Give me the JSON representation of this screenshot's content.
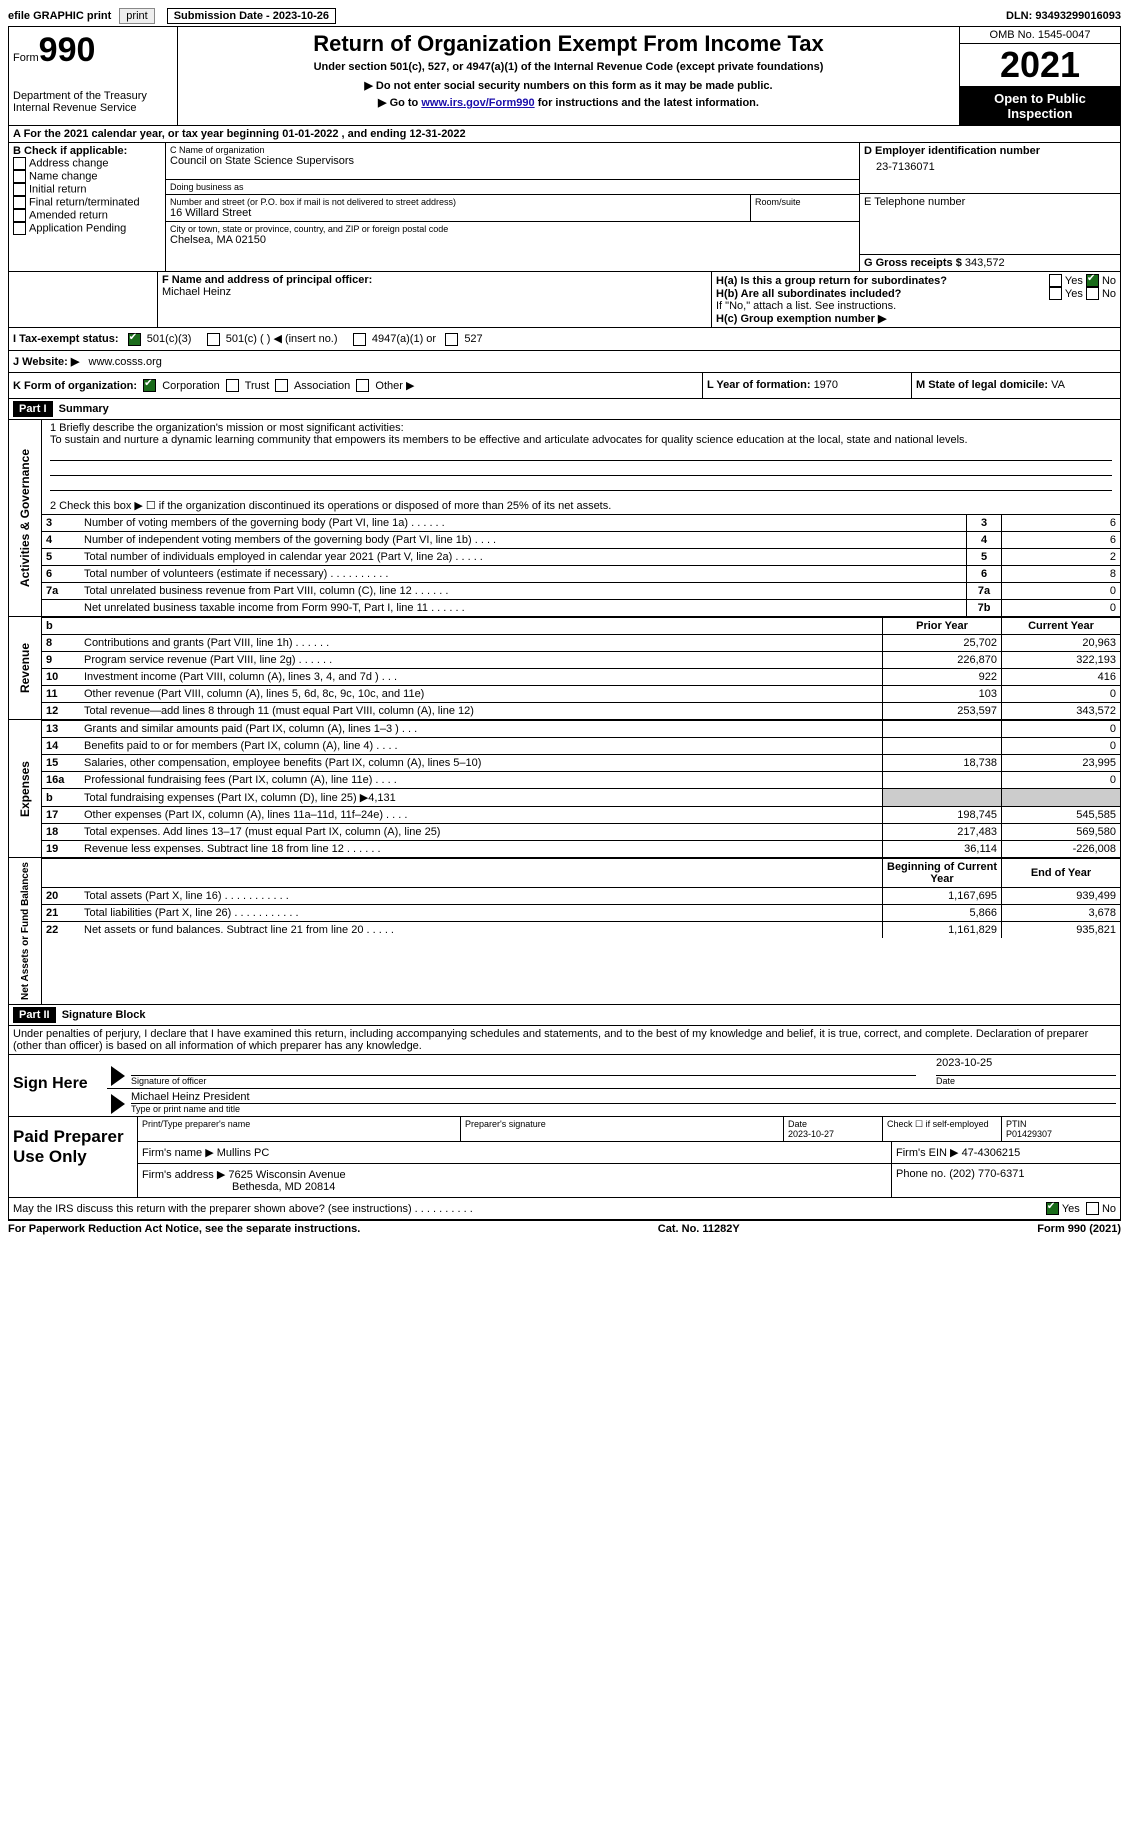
{
  "topbar": {
    "efile_label": "efile GRAPHIC print",
    "submission_label": "Submission Date - 2023-10-26",
    "dln_label": "DLN: 93493299016093"
  },
  "header": {
    "form_label": "Form",
    "form_number": "990",
    "dept": "Department of the Treasury",
    "irs": "Internal Revenue Service",
    "title": "Return of Organization Exempt From Income Tax",
    "subtitle": "Under section 501(c), 527, or 4947(a)(1) of the Internal Revenue Code (except private foundations)",
    "note1": "▶ Do not enter social security numbers on this form as it may be made public.",
    "note2_pre": "▶ Go to ",
    "note2_link": "www.irs.gov/Form990",
    "note2_post": " for instructions and the latest information.",
    "omb": "OMB No. 1545-0047",
    "year": "2021",
    "otp": "Open to Public Inspection"
  },
  "period": {
    "label_a": "A For the 2021 calendar year, or tax year beginning ",
    "begin": "01-01-2022",
    "label_mid": " , and ending ",
    "end": "12-31-2022"
  },
  "sectionB": {
    "label": "B Check if applicable:",
    "items": [
      "Address change",
      "Name change",
      "Initial return",
      "Final return/terminated",
      "Amended return",
      "Application Pending"
    ]
  },
  "sectionC": {
    "name_label": "C Name of organization",
    "name": "Council on State Science Supervisors",
    "dba_label": "Doing business as",
    "dba": "",
    "addr_label": "Number and street (or P.O. box if mail is not delivered to street address)",
    "room_label": "Room/suite",
    "addr": "16 Willard Street",
    "city_label": "City or town, state or province, country, and ZIP or foreign postal code",
    "city": "Chelsea, MA  02150"
  },
  "sectionD": {
    "label": "D Employer identification number",
    "value": "23-7136071"
  },
  "sectionE": {
    "label": "E Telephone number",
    "value": ""
  },
  "sectionG": {
    "label": "G Gross receipts $ ",
    "value": "343,572"
  },
  "sectionF": {
    "label": "F  Name and address of principal officer:",
    "value": "Michael Heinz"
  },
  "sectionH": {
    "ha_label": "H(a)  Is this a group return for subordinates?",
    "hb_label": "H(b)  Are all subordinates included?",
    "hb_note": "If \"No,\" attach a list. See instructions.",
    "hc_label": "H(c)  Group exemption number ▶",
    "yes": "Yes",
    "no": "No"
  },
  "sectionI": {
    "label": "I     Tax-exempt status:",
    "opt1": "501(c)(3)",
    "opt2": "501(c) (  ) ◀ (insert no.)",
    "opt3": "4947(a)(1) or",
    "opt4": "527"
  },
  "sectionJ": {
    "label": "J    Website: ▶",
    "value": "www.cosss.org"
  },
  "sectionK": {
    "label": "K Form of organization:",
    "opts": [
      "Corporation",
      "Trust",
      "Association",
      "Other ▶"
    ]
  },
  "sectionL": {
    "label": "L Year of formation: ",
    "value": "1970"
  },
  "sectionM": {
    "label": "M State of legal domicile: ",
    "value": "VA"
  },
  "part1": {
    "header": "Part I",
    "title": "Summary",
    "q1_label": "1   Briefly describe the organization's mission or most significant activities:",
    "q1_text": "To sustain and nurture a dynamic learning community that empowers its members to be effective and articulate advocates for quality science education at the local, state and national levels.",
    "q2_label": "2     Check this box ▶ ☐  if the organization discontinued its operations or disposed of more than 25% of its net assets.",
    "side_activities": "Activities & Governance",
    "side_revenue": "Revenue",
    "side_expenses": "Expenses",
    "side_net": "Net Assets or Fund Balances",
    "col_prior": "Prior Year",
    "col_current": "Current Year",
    "col_begin": "Beginning of Current Year",
    "col_end": "End of Year",
    "gov_rows": [
      {
        "n": "3",
        "t": "Number of voting members of the governing body (Part VI, line 1a)   .     .     .     .     .     .",
        "ln": "3",
        "v": "6"
      },
      {
        "n": "4",
        "t": "Number of independent voting members of the governing body (Part VI, line 1b)   .     .     .     .",
        "ln": "4",
        "v": "6"
      },
      {
        "n": "5",
        "t": "Total number of individuals employed in calendar year 2021 (Part V, line 2a)   .     .     .     .     .",
        "ln": "5",
        "v": "2"
      },
      {
        "n": "6",
        "t": "Total number of volunteers (estimate if necessary)     .     .     .     .     .     .     .     .     .     .",
        "ln": "6",
        "v": "8"
      },
      {
        "n": "7a",
        "t": "Total unrelated business revenue from Part VIII, column (C), line 12     .     .     .     .     .     .",
        "ln": "7a",
        "v": "0"
      },
      {
        "n": "",
        "t": "Net unrelated business taxable income from Form 990-T, Part I, line 11   .     .     .     .     .     .",
        "ln": "7b",
        "v": "0"
      }
    ],
    "rev_rows": [
      {
        "n": "8",
        "t": "Contributions and grants (Part VIII, line 1h)   .     .     .     .     .     .",
        "p": "25,702",
        "c": "20,963"
      },
      {
        "n": "9",
        "t": "Program service revenue (Part VIII, line 2g)     .     .     .     .     .     .",
        "p": "226,870",
        "c": "322,193"
      },
      {
        "n": "10",
        "t": "Investment income (Part VIII, column (A), lines 3, 4, and 7d )     .     .     .",
        "p": "922",
        "c": "416"
      },
      {
        "n": "11",
        "t": "Other revenue (Part VIII, column (A), lines 5, 6d, 8c, 9c, 10c, and 11e)",
        "p": "103",
        "c": "0"
      },
      {
        "n": "12",
        "t": "Total revenue—add lines 8 through 11 (must equal Part VIII, column (A), line 12)",
        "p": "253,597",
        "c": "343,572"
      }
    ],
    "exp_rows": [
      {
        "n": "13",
        "t": "Grants and similar amounts paid (Part IX, column (A), lines 1–3 )   .     .     .",
        "p": "",
        "c": "0"
      },
      {
        "n": "14",
        "t": "Benefits paid to or for members (Part IX, column (A), line 4)   .     .     .     .",
        "p": "",
        "c": "0"
      },
      {
        "n": "15",
        "t": "Salaries, other compensation, employee benefits (Part IX, column (A), lines 5–10)",
        "p": "18,738",
        "c": "23,995"
      },
      {
        "n": "16a",
        "t": "Professional fundraising fees (Part IX, column (A), line 11e)     .     .     .     .",
        "p": "",
        "c": "0"
      },
      {
        "n": "b",
        "t": "Total fundraising expenses (Part IX, column (D), line 25) ▶4,131",
        "p": "GRAY",
        "c": "GRAY"
      },
      {
        "n": "17",
        "t": "Other expenses (Part IX, column (A), lines 11a–11d, 11f–24e)   .     .     .     .",
        "p": "198,745",
        "c": "545,585"
      },
      {
        "n": "18",
        "t": "Total expenses. Add lines 13–17 (must equal Part IX, column (A), line 25)",
        "p": "217,483",
        "c": "569,580"
      },
      {
        "n": "19",
        "t": "Revenue less expenses. Subtract line 18 from line 12   .     .     .     .     .     .",
        "p": "36,114",
        "c": "-226,008"
      }
    ],
    "net_rows": [
      {
        "n": "20",
        "t": "Total assets (Part X, line 16)   .     .     .     .     .     .     .     .     .     .     .",
        "p": "1,167,695",
        "c": "939,499"
      },
      {
        "n": "21",
        "t": "Total liabilities (Part X, line 26)   .     .     .     .     .     .     .     .     .     .     .",
        "p": "5,866",
        "c": "3,678"
      },
      {
        "n": "22",
        "t": "Net assets or fund balances. Subtract line 21 from line 20   .     .     .     .     .",
        "p": "1,161,829",
        "c": "935,821"
      }
    ]
  },
  "part2": {
    "header": "Part II",
    "title": "Signature Block",
    "declaration": "Under penalties of perjury, I declare that I have examined this return, including accompanying schedules and statements, and to the best of my knowledge and belief, it is true, correct, and complete. Declaration of preparer (other than officer) is based on all information of which preparer has any knowledge.",
    "sign_here": "Sign Here",
    "sig_officer": "Signature of officer",
    "sig_date": "2023-10-25",
    "sig_date_label": "Date",
    "officer_name": "Michael Heinz  President",
    "type_name_label": "Type or print name and title",
    "paid": "Paid Preparer Use Only",
    "prep_name_label": "Print/Type preparer's name",
    "prep_sig_label": "Preparer's signature",
    "prep_date_label": "Date",
    "prep_date": "2023-10-27",
    "check_self": "Check ☐ if self-employed",
    "ptin_label": "PTIN",
    "ptin": "P01429307",
    "firm_name_label": "Firm's name     ▶ ",
    "firm_name": "Mullins PC",
    "firm_ein_label": "Firm's EIN ▶ ",
    "firm_ein": "47-4306215",
    "firm_addr_label": "Firm's address ▶ ",
    "firm_addr": "7625 Wisconsin Avenue",
    "firm_addr2": "Bethesda, MD  20814",
    "phone_label": "Phone no. ",
    "phone": "(202) 770-6371",
    "may_irs": "May the IRS discuss this return with the preparer shown above? (see instructions)   .     .     .     .     .     .     .     .     .     ."
  },
  "footer": {
    "left": "For Paperwork Reduction Act Notice, see the separate instructions.",
    "mid": "Cat. No. 11282Y",
    "right": "Form 990 (2021)"
  }
}
